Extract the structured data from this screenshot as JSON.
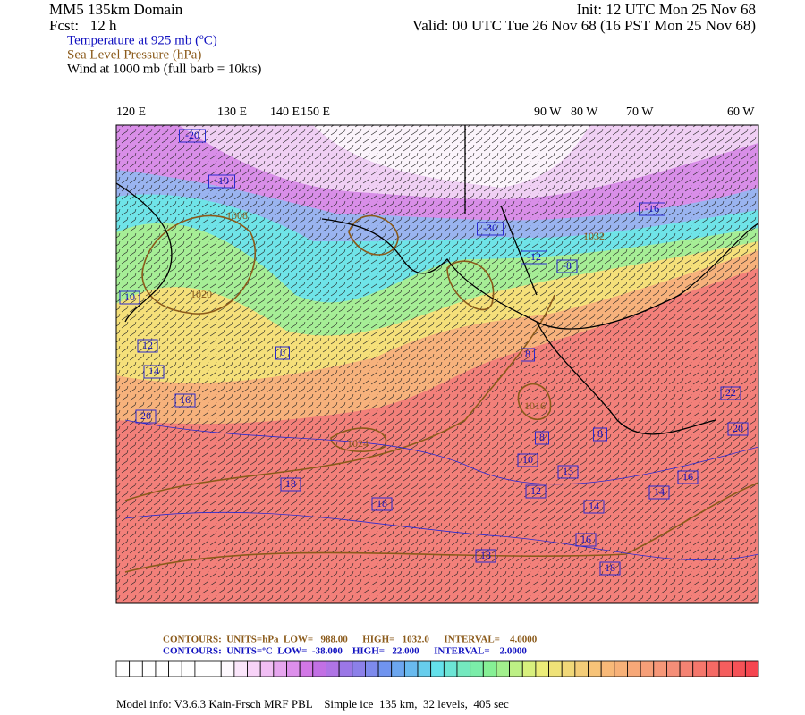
{
  "header": {
    "title": "MM5 135km Domain",
    "forecast": "Fcst:   12 h",
    "init": "Init: 12 UTC Mon 25 Nov 68",
    "valid": "Valid: 00 UTC Tue 26 Nov 68 (16 PST Mon 25 Nov 68)",
    "fields": [
      "Temperature at 925 mb (ºC)",
      "Sea Level Pressure (hPa)",
      "Wind at 1000 mb (full barb = 10kts)"
    ]
  },
  "map": {
    "longitude_labels": [
      "120 E",
      "130 E",
      "140 E",
      "150 E",
      "90 W",
      "80 W",
      "70 W",
      "60 W"
    ],
    "temperature_labels": [
      "-20",
      "-10",
      "10",
      "12",
      "14",
      "16",
      "20",
      "0",
      "-30",
      "-16",
      "-12",
      "-8",
      "8",
      "10",
      "13",
      "12",
      "14",
      "16",
      "18",
      "18",
      "18",
      "18",
      "14",
      "16",
      "20",
      "22",
      "8",
      "8"
    ],
    "pressure_labels": [
      "1008",
      "1020",
      "1032",
      "1024",
      "1016"
    ]
  },
  "footer": {
    "pressure_contours": "CONTOURS:  UNITS=hPa  LOW=   988.00      HIGH=   1032.0      INTERVAL=    4.0000",
    "temperature_contours": "CONTOURS:  UNITS=ºC  LOW=  -38.000    HIGH=   22.000      INTERVAL=    2.0000",
    "model_info": "Model info: V3.6.3 Kain-Frsch MRF PBL    Simple ice  135 km,  32 levels,  405 sec"
  }
}
